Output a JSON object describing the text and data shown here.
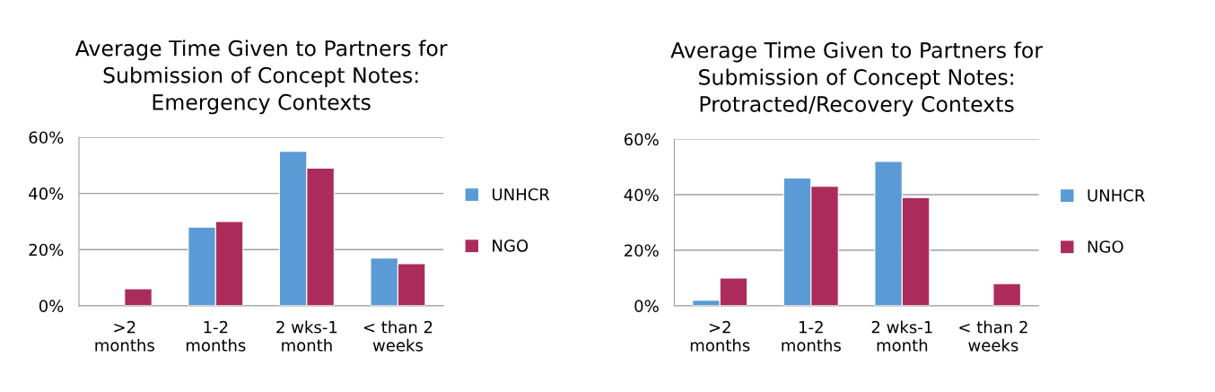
{
  "chart_data": [
    {
      "type": "bar",
      "title": "Average Time Given to Partners for\nSubmission of Concept Notes:\nEmergency Contexts",
      "categories": [
        ">2\nmonths",
        "1-2\nmonths",
        "2 wks-1\nmonth",
        "< than 2\nweeks"
      ],
      "series": [
        {
          "name": "UNHCR",
          "color": "#5b9bd5",
          "values": [
            null,
            28,
            55,
            17
          ]
        },
        {
          "name": "NGO",
          "color": "#ab2c5a",
          "values": [
            6,
            30,
            49,
            15
          ]
        }
      ],
      "ylim": [
        0,
        60
      ],
      "yticks": [
        {
          "value": 0,
          "label": "0%"
        },
        {
          "value": 20,
          "label": "20%"
        },
        {
          "value": 40,
          "label": "40%"
        },
        {
          "value": 60,
          "label": "60%"
        }
      ],
      "grid": "y",
      "legend": "right"
    },
    {
      "type": "bar",
      "title": "Average Time Given to Partners for\nSubmission of Concept Notes:\nProtracted/Recovery Contexts",
      "categories": [
        ">2\nmonths",
        "1-2\nmonths",
        "2 wks-1\nmonth",
        "< than 2\nweeks"
      ],
      "series": [
        {
          "name": "UNHCR",
          "color": "#5b9bd5",
          "values": [
            2,
            46,
            52,
            null
          ]
        },
        {
          "name": "NGO",
          "color": "#ab2c5a",
          "values": [
            10,
            43,
            39,
            8
          ]
        }
      ],
      "ylim": [
        0,
        60
      ],
      "yticks": [
        {
          "value": 0,
          "label": "0%"
        },
        {
          "value": 20,
          "label": "20%"
        },
        {
          "value": 40,
          "label": "40%"
        },
        {
          "value": 60,
          "label": "60%"
        }
      ],
      "grid": "y",
      "legend": "right"
    }
  ]
}
